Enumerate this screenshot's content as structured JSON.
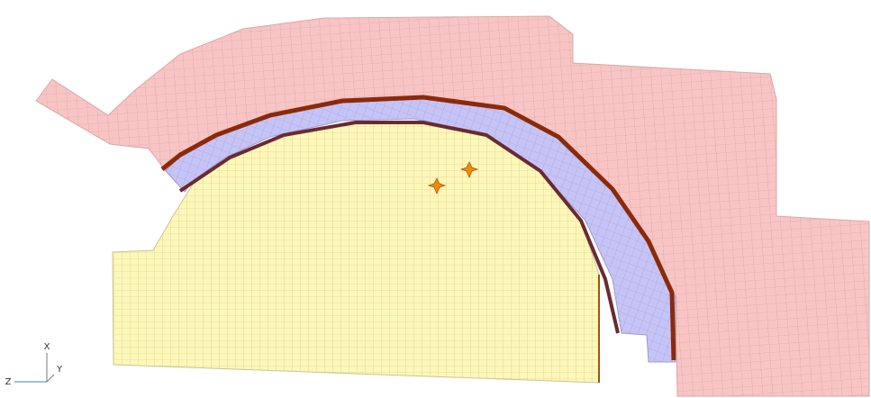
{
  "triad": {
    "x": "X",
    "y": "Y",
    "z": "Z"
  }
}
